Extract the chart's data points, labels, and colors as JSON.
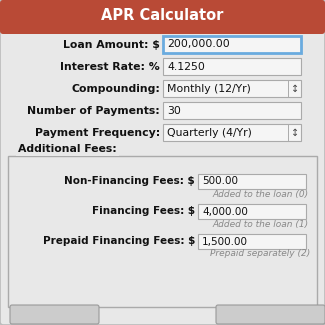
{
  "title": "APR Calculator",
  "title_bg": "#b94a36",
  "title_color": "#ffffff",
  "bg_color": "#e8e8e8",
  "outer_bg": "#d0d0d0",
  "field_bg": "#f5f5f5",
  "field_border": "#aaaaaa",
  "active_field_border": "#6aabdf",
  "fields": [
    {
      "label": "Loan Amount: $",
      "value": "200,000.00",
      "active": true,
      "dropdown": false
    },
    {
      "label": "Interest Rate: %",
      "value": "4.1250",
      "active": false,
      "dropdown": false
    },
    {
      "label": "Compounding:",
      "value": "Monthly (12/Yr)",
      "active": false,
      "dropdown": true
    },
    {
      "label": "Number of Payments:",
      "value": "30",
      "active": false,
      "dropdown": false
    },
    {
      "label": "Payment Frequency:",
      "value": "Quarterly (4/Yr)",
      "active": false,
      "dropdown": true
    }
  ],
  "additional_fees_label": "Additional Fees:",
  "fees": [
    {
      "label": "Non-Financing Fees: $",
      "value": "500.00",
      "sub": "Added to the loan (0)"
    },
    {
      "label": "Financing Fees: $",
      "value": "4,000.00",
      "sub": "Added to the loan (1)"
    },
    {
      "label": "Prepaid Financing Fees: $",
      "value": "1,500.00",
      "sub": "Prepaid separately (2)"
    }
  ],
  "fee_box_border": "#aaaaaa",
  "label_color": "#111111",
  "sub_label_color": "#888888",
  "dpi": 100,
  "fig_w": 3.25,
  "fig_h": 3.25
}
